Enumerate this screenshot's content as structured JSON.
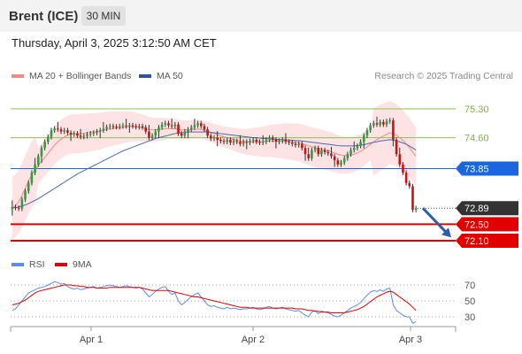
{
  "header": {
    "instrument": "Brent (ICE)",
    "timeframe": "30 MIN"
  },
  "datetime": "Thursday, April 3, 2025 3:12:50 AM CET",
  "legend": {
    "bollinger": {
      "label": "MA 20 + Bollinger Bands",
      "color": "#f28b82"
    },
    "ma50": {
      "label": "MA 50",
      "color": "#2f5597"
    },
    "research": "Research © 2025 Trading Central"
  },
  "rsi_legend": {
    "rsi": {
      "label": "RSI",
      "color": "#5b8def"
    },
    "ma9": {
      "label": "9MA",
      "color": "#e00000"
    }
  },
  "levels": [
    {
      "value": "75.30",
      "y": 75.3,
      "kind": "resistance",
      "color": "#8bc34a"
    },
    {
      "value": "74.60",
      "y": 74.6,
      "kind": "resistance",
      "color": "#8bc34a"
    },
    {
      "value": "73.85",
      "y": 73.85,
      "kind": "pivot",
      "color": "#1a66e0"
    },
    {
      "value": "72.89",
      "y": 72.89,
      "kind": "last",
      "color": "#333333"
    },
    {
      "value": "72.50",
      "y": 72.5,
      "kind": "support",
      "color": "#e00000"
    },
    {
      "value": "72.10",
      "y": 72.1,
      "kind": "support",
      "color": "#e00000"
    }
  ],
  "rsi_levels": [
    "70",
    "50",
    "30"
  ],
  "x_labels": [
    "Apr 1",
    "Apr 2",
    "Apr 3"
  ],
  "chart_data": {
    "type": "candlestick",
    "y_range": [
      71.2,
      76.2
    ],
    "candles_close": [
      72.92,
      72.9,
      72.88,
      73.1,
      73.3,
      73.5,
      73.75,
      73.95,
      74.15,
      74.35,
      74.5,
      74.62,
      74.78,
      74.82,
      74.8,
      74.75,
      74.78,
      74.72,
      74.68,
      74.7,
      74.65,
      74.62,
      74.64,
      74.68,
      74.7,
      74.72,
      74.75,
      74.78,
      74.82,
      74.86,
      74.88,
      74.87,
      74.86,
      74.88,
      74.9,
      74.88,
      74.9,
      74.88,
      74.86,
      74.88,
      74.85,
      74.75,
      74.6,
      74.65,
      74.75,
      74.85,
      74.92,
      74.95,
      74.9,
      74.88,
      74.92,
      74.7,
      74.65,
      74.75,
      74.8,
      74.85,
      74.9,
      74.95,
      74.88,
      74.8,
      74.65,
      74.58,
      74.6,
      74.55,
      74.52,
      74.5,
      74.55,
      74.48,
      74.52,
      74.5,
      74.45,
      74.5,
      74.48,
      74.52,
      74.55,
      74.5,
      74.48,
      74.5,
      74.55,
      74.6,
      74.55,
      74.5,
      74.52,
      74.55,
      74.5,
      74.48,
      74.45,
      74.42,
      74.45,
      74.35,
      74.2,
      74.1,
      74.3,
      74.35,
      74.2,
      74.3,
      74.25,
      74.22,
      74.15,
      74.05,
      73.95,
      74.0,
      74.1,
      74.2,
      74.3,
      74.35,
      74.4,
      74.5,
      74.65,
      74.78,
      74.9,
      74.95,
      74.92,
      74.98,
      74.92,
      75.0,
      75.02,
      74.55,
      74.2,
      73.95,
      73.75,
      73.5,
      73.42,
      72.85,
      72.89
    ],
    "ma20": [
      72.9,
      72.95,
      73.05,
      73.2,
      73.38,
      73.55,
      73.7,
      73.82,
      73.92,
      74.02,
      74.12,
      74.22,
      74.32,
      74.42,
      74.5,
      74.56,
      74.62,
      74.66,
      74.68,
      74.7,
      74.7,
      74.7,
      74.71,
      74.72,
      74.73,
      74.74,
      74.75,
      74.76,
      74.78,
      74.8,
      74.81,
      74.82,
      74.83,
      74.84,
      74.85,
      74.86,
      74.87,
      74.87,
      74.86,
      74.85,
      74.84,
      74.82,
      74.8,
      74.79,
      74.79,
      74.8,
      74.81,
      74.82,
      74.82,
      74.82,
      74.82,
      74.8,
      74.79,
      74.79,
      74.79,
      74.8,
      74.8,
      74.81,
      74.8,
      74.78,
      74.76,
      74.73,
      74.7,
      74.67,
      74.64,
      74.62,
      74.6,
      74.58,
      74.56,
      74.54,
      74.52,
      74.51,
      74.5,
      74.5,
      74.5,
      74.5,
      74.5,
      74.5,
      74.51,
      74.52,
      74.52,
      74.52,
      74.52,
      74.52,
      74.52,
      74.51,
      74.5,
      74.49,
      74.48,
      74.46,
      74.43,
      74.4,
      74.38,
      74.36,
      74.34,
      74.32,
      74.3,
      74.28,
      74.26,
      74.23,
      74.2,
      74.18,
      74.17,
      74.17,
      74.18,
      74.2,
      74.23,
      74.27,
      74.32,
      74.38,
      74.44,
      74.5,
      74.55,
      74.6,
      74.64,
      74.68,
      74.72,
      74.7,
      74.66,
      74.6,
      74.53,
      74.45,
      74.36,
      74.25,
      74.15
    ],
    "ma50": [
      72.9,
      72.9,
      72.92,
      72.94,
      72.97,
      73.0,
      73.04,
      73.08,
      73.12,
      73.17,
      73.22,
      73.27,
      73.32,
      73.37,
      73.42,
      73.47,
      73.52,
      73.57,
      73.62,
      73.67,
      73.72,
      73.76,
      73.8,
      73.84,
      73.88,
      73.92,
      73.96,
      74.0,
      74.04,
      74.08,
      74.12,
      74.16,
      74.2,
      74.24,
      74.28,
      74.31,
      74.34,
      74.37,
      74.4,
      74.43,
      74.46,
      74.49,
      74.52,
      74.55,
      74.58,
      74.6,
      74.62,
      74.64,
      74.66,
      74.68,
      74.7,
      74.71,
      74.72,
      74.73,
      74.74,
      74.74,
      74.74,
      74.74,
      74.74,
      74.74,
      74.74,
      74.73,
      74.72,
      74.71,
      74.7,
      74.69,
      74.68,
      74.67,
      74.66,
      74.65,
      74.64,
      74.63,
      74.62,
      74.61,
      74.6,
      74.6,
      74.59,
      74.58,
      74.58,
      74.57,
      74.57,
      74.56,
      74.56,
      74.55,
      74.55,
      74.54,
      74.54,
      74.53,
      74.53,
      74.52,
      74.51,
      74.5,
      74.49,
      74.48,
      74.47,
      74.46,
      74.45,
      74.44,
      74.43,
      74.42,
      74.41,
      74.4,
      74.4,
      74.4,
      74.4,
      74.4,
      74.41,
      74.42,
      74.43,
      74.45,
      74.47,
      74.49,
      74.5,
      74.52,
      74.53,
      74.54,
      74.55,
      74.54,
      74.52,
      74.5,
      74.47,
      74.44,
      74.4,
      74.35,
      74.3
    ],
    "rsi": [
      38,
      40,
      45,
      50,
      55,
      60,
      62,
      64,
      66,
      67,
      68,
      70,
      72,
      74,
      73,
      71,
      72,
      68,
      66,
      65,
      66,
      64,
      65,
      66,
      67,
      68,
      66,
      67,
      68,
      69,
      70,
      69,
      68,
      67,
      68,
      69,
      68,
      67,
      66,
      67,
      65,
      60,
      55,
      58,
      62,
      65,
      67,
      68,
      62,
      58,
      60,
      50,
      45,
      48,
      52,
      55,
      58,
      60,
      55,
      50,
      45,
      43,
      44,
      42,
      41,
      40,
      42,
      40,
      41,
      40,
      39,
      40,
      40,
      41,
      42,
      40,
      39,
      40,
      42,
      43,
      41,
      40,
      41,
      42,
      40,
      39,
      38,
      37,
      38,
      35,
      32,
      30,
      36,
      38,
      34,
      37,
      36,
      35,
      33,
      31,
      30,
      32,
      35,
      38,
      41,
      43,
      45,
      48,
      53,
      57,
      61,
      63,
      62,
      64,
      62,
      65,
      66,
      45,
      38,
      35,
      32,
      30,
      30,
      22,
      24
    ],
    "rsi_ma9": [
      45,
      46,
      47,
      49,
      51,
      54,
      57,
      60,
      62,
      63,
      64,
      65,
      66,
      67,
      68,
      69,
      70,
      70,
      70,
      69,
      69,
      68,
      68,
      67,
      67,
      67,
      66,
      66,
      66,
      66,
      67,
      67,
      67,
      67,
      67,
      67,
      67,
      67,
      67,
      67,
      66,
      65,
      64,
      63,
      63,
      63,
      63,
      63,
      63,
      62,
      61,
      60,
      59,
      58,
      57,
      56,
      55,
      55,
      54,
      53,
      52,
      51,
      50,
      49,
      48,
      47,
      46,
      45,
      44,
      43,
      42,
      42,
      42,
      41,
      41,
      41,
      41,
      41,
      41,
      41,
      41,
      41,
      41,
      41,
      41,
      41,
      41,
      40,
      40,
      40,
      39,
      38,
      38,
      37,
      37,
      36,
      36,
      36,
      35,
      35,
      35,
      35,
      35,
      36,
      37,
      38,
      39,
      41,
      43,
      46,
      49,
      52,
      55,
      57,
      59,
      61,
      62,
      61,
      58,
      55,
      52,
      49,
      46,
      42,
      38
    ]
  }
}
